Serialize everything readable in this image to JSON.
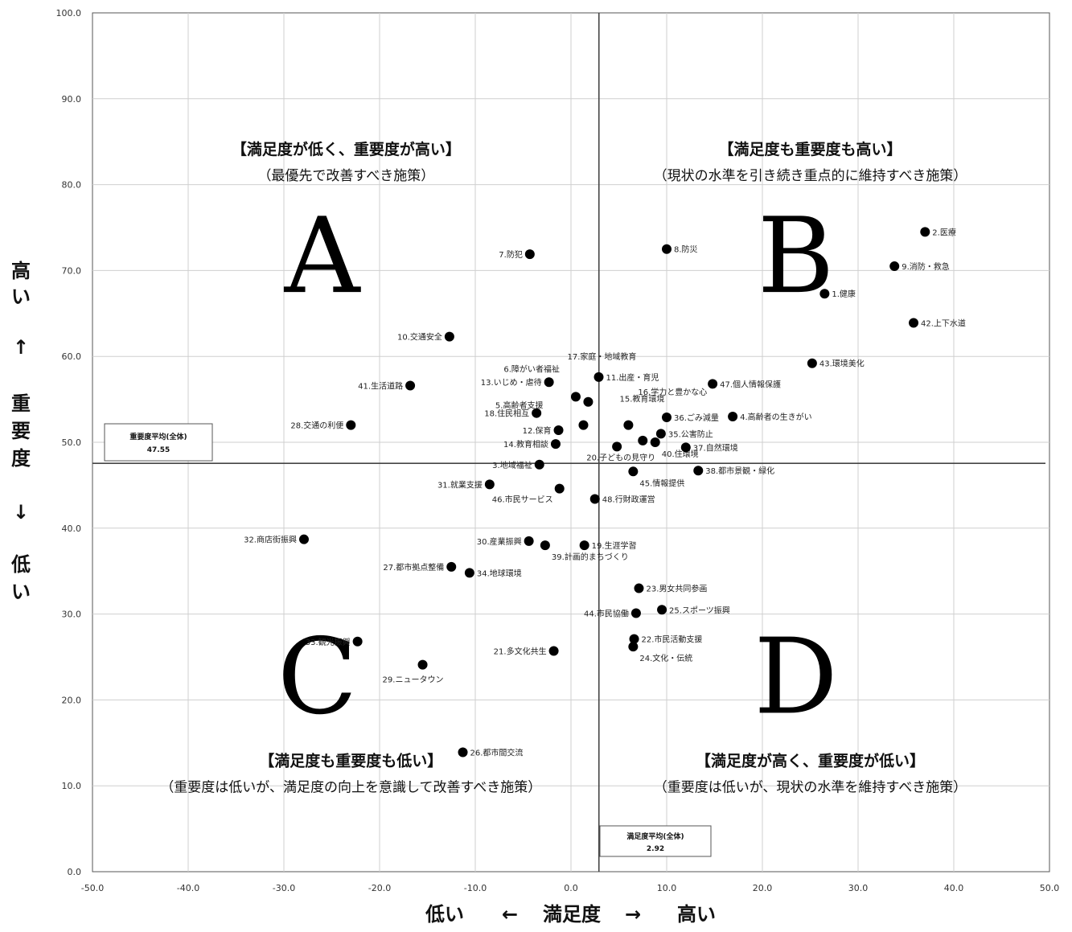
{
  "chart_data": {
    "type": "scatter",
    "xlim": [
      -50,
      50
    ],
    "ylim": [
      0,
      100
    ],
    "x_ticks": [
      "-50.0",
      "-40.0",
      "-30.0",
      "-20.0",
      "-10.0",
      "0.0",
      "10.0",
      "20.0",
      "30.0",
      "40.0",
      "50.0"
    ],
    "y_ticks": [
      "0.0",
      "10.0",
      "20.0",
      "30.0",
      "40.0",
      "50.0",
      "60.0",
      "70.0",
      "80.0",
      "90.0",
      "100.0"
    ],
    "grid": true,
    "x_axis_label": {
      "low": "低い",
      "arrow_left": "←",
      "name": "満足度",
      "arrow_right": "→",
      "high": "高い"
    },
    "y_axis_label": {
      "high": "高い",
      "arrow_up": "↑",
      "name": "重要度",
      "arrow_down": "↓",
      "low": "低い"
    },
    "averages": {
      "importance": {
        "label": "重要度平均(全体)",
        "value": 47.55,
        "value_text": "47.55"
      },
      "satisfaction": {
        "label": "満足度平均(全体)",
        "value": 2.92,
        "value_text": "2.92"
      }
    },
    "quadrants": [
      {
        "letter": "A",
        "title": "【満足度が低く、重要度が高い】",
        "subtitle": "（最優先で改善すべき施策）"
      },
      {
        "letter": "B",
        "title": "【満足度も重要度も高い】",
        "subtitle": "（現状の水準を引き続き重点的に維持すべき施策）"
      },
      {
        "letter": "C",
        "title": "【満足度も重要度も低い】",
        "subtitle": "（重要度は低いが、満足度の向上を意識して改善すべき施策）"
      },
      {
        "letter": "D",
        "title": "【満足度が高く、重要度が低い】",
        "subtitle": "（重要度は低いが、現状の水準を維持すべき施策）"
      }
    ],
    "points": [
      {
        "label": "2.医療",
        "x": 37.0,
        "y": 74.5
      },
      {
        "label": "9.消防・救急",
        "x": 33.8,
        "y": 70.5
      },
      {
        "label": "1.健康",
        "x": 26.5,
        "y": 67.3
      },
      {
        "label": "42.上下水道",
        "x": 35.8,
        "y": 63.9
      },
      {
        "label": "8.防災",
        "x": 10.0,
        "y": 72.5
      },
      {
        "label": "7.防犯",
        "x": -4.3,
        "y": 71.9
      },
      {
        "label": "10.交通安全",
        "x": -12.7,
        "y": 62.3
      },
      {
        "label": "41.生活道路",
        "x": -16.8,
        "y": 56.6
      },
      {
        "label": "28.交通の利便",
        "x": -23.0,
        "y": 52.0
      },
      {
        "label": "43.環境美化",
        "x": 25.2,
        "y": 59.2
      },
      {
        "label": "47.個人情報保護",
        "x": 14.8,
        "y": 56.8
      },
      {
        "label": "4.高齢者の生きがい",
        "x": 16.9,
        "y": 53.0
      },
      {
        "label": "6.障がい者福祉",
        "x": 0.5,
        "y": 55.3
      },
      {
        "label": "17.家庭・地域教育",
        "x": 1.8,
        "y": 54.7
      },
      {
        "label": "11.出産・育児",
        "x": 2.9,
        "y": 57.6
      },
      {
        "label": "13.いじめ・虐待",
        "x": -2.3,
        "y": 57.0
      },
      {
        "label": "5.高齢者支援",
        "x": 1.3,
        "y": 52.0
      },
      {
        "label": "18.住民相互",
        "x": -3.6,
        "y": 53.4
      },
      {
        "label": "15.教育環境",
        "x": 6.0,
        "y": 52.0
      },
      {
        "label": "16.学力と豊かな心",
        "x": 7.5,
        "y": 50.2
      },
      {
        "label": "36.ごみ減量",
        "x": 10.0,
        "y": 52.9
      },
      {
        "label": "35.公害防止",
        "x": 9.4,
        "y": 51.0
      },
      {
        "label": "12.保育",
        "x": -1.3,
        "y": 51.4
      },
      {
        "label": "14.教育相談",
        "x": -1.6,
        "y": 49.8
      },
      {
        "label": "20.子どもの見守り",
        "x": 4.8,
        "y": 49.5
      },
      {
        "label": "40.住環境",
        "x": 8.8,
        "y": 50.0
      },
      {
        "label": "37.自然環境",
        "x": 12.0,
        "y": 49.4
      },
      {
        "label": "3.地域福祉",
        "x": -3.3,
        "y": 47.4
      },
      {
        "label": "38.都市景観・緑化",
        "x": 13.3,
        "y": 46.7
      },
      {
        "label": "45.情報提供",
        "x": 6.5,
        "y": 46.6
      },
      {
        "label": "31.就業支援",
        "x": -8.5,
        "y": 45.1
      },
      {
        "label": "46.市民サービス",
        "x": -1.2,
        "y": 44.6
      },
      {
        "label": "48.行財政運営",
        "x": 2.5,
        "y": 43.4
      },
      {
        "label": "32.商店街振興",
        "x": -27.9,
        "y": 38.7
      },
      {
        "label": "30.産業振興",
        "x": -4.4,
        "y": 38.5
      },
      {
        "label": "39.計画的まちづくり",
        "x": -2.7,
        "y": 38.0
      },
      {
        "label": "19.生涯学習",
        "x": 1.4,
        "y": 38.0
      },
      {
        "label": "27.都市拠点整備",
        "x": -12.5,
        "y": 35.5
      },
      {
        "label": "34.地球環境",
        "x": -10.6,
        "y": 34.8
      },
      {
        "label": "23.男女共同参画",
        "x": 7.1,
        "y": 33.0
      },
      {
        "label": "44.市民協働",
        "x": 6.8,
        "y": 30.1
      },
      {
        "label": "25.スポーツ振興",
        "x": 9.5,
        "y": 30.5
      },
      {
        "label": "22.市民活動支援",
        "x": 6.6,
        "y": 27.1
      },
      {
        "label": "24.文化・伝統",
        "x": 6.5,
        "y": 26.2
      },
      {
        "label": "33.観光振興",
        "x": -22.3,
        "y": 26.8
      },
      {
        "label": "29.ニュータウン",
        "x": -15.5,
        "y": 24.1
      },
      {
        "label": "21.多文化共生",
        "x": -1.8,
        "y": 25.7
      },
      {
        "label": "26.都市間交流",
        "x": -11.3,
        "y": 13.9
      }
    ]
  }
}
